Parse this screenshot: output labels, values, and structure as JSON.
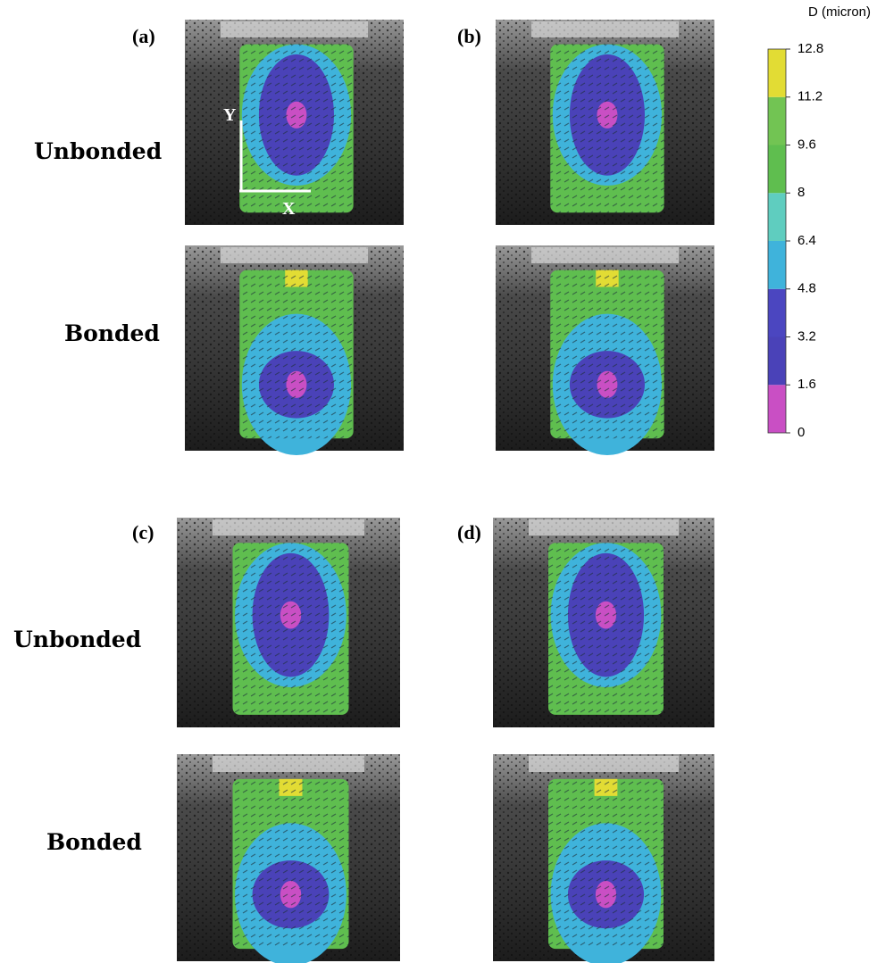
{
  "panels": [
    {
      "label": "(a)"
    },
    {
      "label": "(b)"
    },
    {
      "label": "(c)"
    },
    {
      "label": "(d)"
    }
  ],
  "row_labels": [
    "Unbonded",
    "Bonded",
    "Unbonded",
    "Bonded"
  ],
  "annotations": {
    "y_axis": "Y",
    "x_axis": "X"
  },
  "colorbar": {
    "title": "D (micron)",
    "ticks": [
      0,
      1.6,
      3.2,
      4.8,
      6.4,
      8,
      9.6,
      11.2,
      12.8
    ],
    "colors": [
      "#c94fc4",
      "#4a42b8",
      "#4b46c0",
      "#3fb3db",
      "#5fcdbf",
      "#5fbe4f",
      "#72c453",
      "#e2dc34"
    ]
  }
}
